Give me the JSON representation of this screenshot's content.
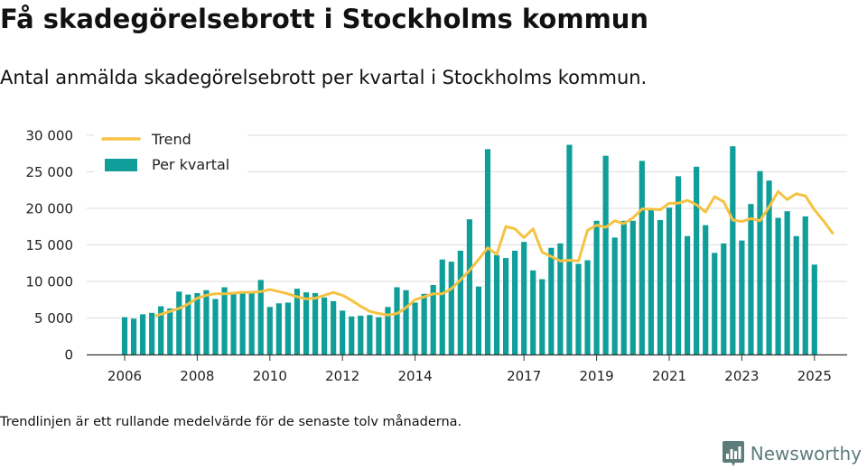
{
  "header": {
    "title": "Få skadegörelsebrott i Stockholms kommun",
    "subtitle": "Antal anmälda skadegörelsebrott per kvartal i Stockholms kommun."
  },
  "footer": {
    "note": "Trendlinjen är ett rullande medelvärde för de senaste tolv månaderna.",
    "brand": "Newsworthy"
  },
  "colors": {
    "bar": "#0f9e99",
    "trend": "#f5c242",
    "grid": "#dddddd",
    "axis": "#333333",
    "brand": "#5d7d7b"
  },
  "chart_data": {
    "type": "bar",
    "x_ticks": [
      {
        "label": "2006",
        "pos": 0
      },
      {
        "label": "2008",
        "pos": 8
      },
      {
        "label": "2010",
        "pos": 16
      },
      {
        "label": "2012",
        "pos": 24
      },
      {
        "label": "2014",
        "pos": 32
      },
      {
        "label": "2017",
        "pos": 44
      },
      {
        "label": "2019",
        "pos": 52
      },
      {
        "label": "2021",
        "pos": 60
      },
      {
        "label": "2023",
        "pos": 68
      },
      {
        "label": "2025",
        "pos": 76
      }
    ],
    "ylim": [
      0,
      30000
    ],
    "y_ticks": [
      {
        "value": 0,
        "label": "0"
      },
      {
        "value": 5000,
        "label": "5 000"
      },
      {
        "value": 10000,
        "label": "10 000"
      },
      {
        "value": 15000,
        "label": "15 000"
      },
      {
        "value": 20000,
        "label": "20 000"
      },
      {
        "value": 25000,
        "label": "25 000"
      },
      {
        "value": 30000,
        "label": "30 000"
      }
    ],
    "grid": true,
    "legend_position": "top-left",
    "series": [
      {
        "name": "Per kvartal",
        "type": "bar",
        "values": [
          5100,
          4900,
          5500,
          5700,
          6600,
          6300,
          8600,
          8200,
          8400,
          8800,
          7600,
          9200,
          8300,
          8600,
          8500,
          10200,
          6500,
          7000,
          7100,
          9000,
          8500,
          8400,
          7800,
          7300,
          6000,
          5200,
          5300,
          5400,
          5100,
          6500,
          9200,
          8800,
          7100,
          8300,
          9500,
          13000,
          12700,
          14200,
          18500,
          9300,
          28100,
          13600,
          13200,
          14200,
          15400,
          11500,
          10300,
          14600,
          15200,
          28700,
          12400,
          12900,
          18300,
          27200,
          16000,
          18300,
          18300,
          26500,
          19900,
          18400,
          20100,
          24400,
          16200,
          25700,
          17700,
          13900,
          15200,
          28500,
          15600,
          20600,
          25100,
          23800,
          18700,
          19600,
          16200,
          18900,
          12300
        ]
      },
      {
        "name": "Trend",
        "type": "line",
        "points": [
          [
            3.5,
            5300
          ],
          [
            5,
            5900
          ],
          [
            6,
            6300
          ],
          [
            7,
            6900
          ],
          [
            8,
            7700
          ],
          [
            9,
            8100
          ],
          [
            10,
            8300
          ],
          [
            11,
            8300
          ],
          [
            12,
            8400
          ],
          [
            13,
            8500
          ],
          [
            14,
            8500
          ],
          [
            15,
            8600
          ],
          [
            16,
            8900
          ],
          [
            17,
            8600
          ],
          [
            18,
            8300
          ],
          [
            19,
            7900
          ],
          [
            20,
            7600
          ],
          [
            21,
            7700
          ],
          [
            22,
            8100
          ],
          [
            23,
            8500
          ],
          [
            24,
            8100
          ],
          [
            25,
            7400
          ],
          [
            26,
            6600
          ],
          [
            27,
            5900
          ],
          [
            28,
            5600
          ],
          [
            29,
            5400
          ],
          [
            30,
            5600
          ],
          [
            31,
            6400
          ],
          [
            32,
            7500
          ],
          [
            33,
            7900
          ],
          [
            34,
            8300
          ],
          [
            35,
            8300
          ],
          [
            36,
            9000
          ],
          [
            37,
            10200
          ],
          [
            38,
            11500
          ],
          [
            39,
            13000
          ],
          [
            40,
            14600
          ],
          [
            41,
            13700
          ],
          [
            42,
            17500
          ],
          [
            43,
            17200
          ],
          [
            44,
            16000
          ],
          [
            45,
            17200
          ],
          [
            46,
            14000
          ],
          [
            47,
            13400
          ],
          [
            48,
            12800
          ],
          [
            49,
            12900
          ],
          [
            50,
            12800
          ],
          [
            51,
            17000
          ],
          [
            52,
            17700
          ],
          [
            53,
            17400
          ],
          [
            54,
            18300
          ],
          [
            55,
            17900
          ],
          [
            56,
            18700
          ],
          [
            57,
            19900
          ],
          [
            58,
            19900
          ],
          [
            59,
            19800
          ],
          [
            60,
            20700
          ],
          [
            61,
            20700
          ],
          [
            62,
            21100
          ],
          [
            63,
            20500
          ],
          [
            64,
            19500
          ],
          [
            65,
            21600
          ],
          [
            66,
            20900
          ],
          [
            67,
            18400
          ],
          [
            68,
            18200
          ],
          [
            69,
            18600
          ],
          [
            70,
            18300
          ],
          [
            71,
            20200
          ],
          [
            72,
            22300
          ],
          [
            73,
            21200
          ],
          [
            74,
            22000
          ],
          [
            75,
            21700
          ],
          [
            76,
            19800
          ],
          [
            77,
            18300
          ],
          [
            78,
            16600
          ]
        ]
      }
    ]
  }
}
